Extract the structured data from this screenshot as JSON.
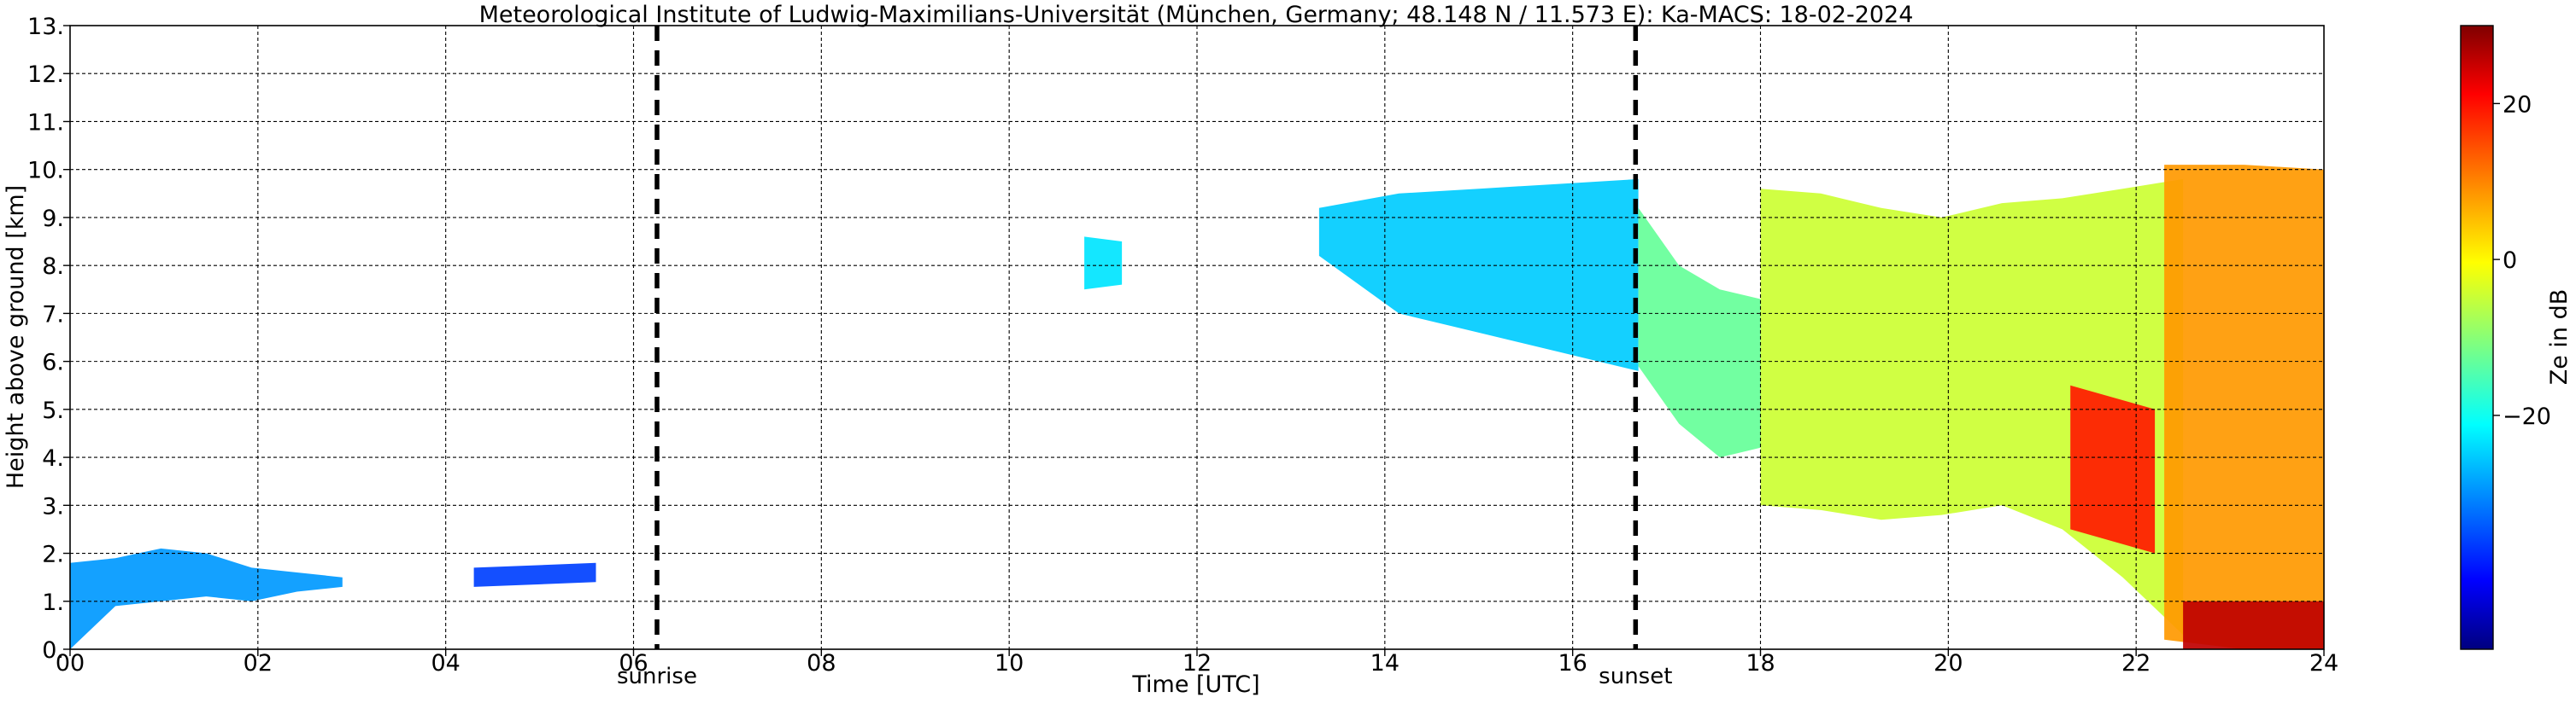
{
  "chart_data": {
    "type": "heatmap",
    "title": "Meteorological Institute of Ludwig-Maximilians-Universität (München, Germany; 48.148 N / 11.573 E):    Ka-MACS: 18-02-2024",
    "xlabel": "Time [UTC]",
    "ylabel": "Height above ground [km]",
    "xlim": [
      0,
      24
    ],
    "ylim": [
      0,
      13
    ],
    "x_ticks": [
      0,
      2,
      4,
      6,
      8,
      10,
      12,
      14,
      16,
      18,
      20,
      22,
      24
    ],
    "x_tick_labels": [
      "00",
      "02",
      "04",
      "06",
      "08",
      "10",
      "12",
      "14",
      "16",
      "18",
      "20",
      "22",
      "24"
    ],
    "y_ticks": [
      0,
      1,
      2,
      3,
      4,
      5,
      6,
      7,
      8,
      9,
      10,
      11,
      12,
      13
    ],
    "y_tick_labels": [
      "0.",
      "1.",
      "2.",
      "3.",
      "4.",
      "5.",
      "6.",
      "7.",
      "8.",
      "9.",
      "10.",
      "11.",
      "12.",
      "13."
    ],
    "grid": true,
    "markers": [
      {
        "label": "sunrise",
        "x": 6.25
      },
      {
        "label": "sunset",
        "x": 16.67
      }
    ],
    "colorbar": {
      "label": "Ze in dB",
      "range": [
        -50,
        30
      ],
      "ticks": [
        -20,
        0,
        20
      ],
      "tick_labels": [
        "−20",
        "0",
        "20"
      ],
      "colormap": "jet"
    },
    "regions": [
      {
        "x": [
          0.0,
          2.9
        ],
        "bottom": [
          0.0,
          0.9,
          1.0,
          1.1,
          1.0,
          1.2,
          1.3
        ],
        "top": [
          1.8,
          1.9,
          2.1,
          2.0,
          1.7,
          1.6,
          1.5
        ],
        "ze": -28
      },
      {
        "x": [
          4.3,
          5.6
        ],
        "bottom": [
          1.3,
          1.4
        ],
        "top": [
          1.7,
          1.8
        ],
        "ze": -35
      },
      {
        "x": [
          10.8,
          11.2
        ],
        "bottom": [
          7.5,
          7.6
        ],
        "top": [
          8.6,
          8.5
        ],
        "ze": -22
      },
      {
        "x": [
          13.3,
          16.7
        ],
        "bottom": [
          8.2,
          7.0,
          6.6,
          6.2,
          5.8
        ],
        "top": [
          9.2,
          9.5,
          9.6,
          9.7,
          9.8
        ],
        "ze": -24
      },
      {
        "x": [
          16.7,
          18.0
        ],
        "bottom": [
          5.9,
          4.7,
          4.0,
          4.2
        ],
        "top": [
          9.2,
          8.0,
          7.5,
          7.3
        ],
        "ze": -12
      },
      {
        "x": [
          18.0,
          22.5
        ],
        "bottom": [
          3.0,
          2.9,
          2.7,
          2.8,
          3.0,
          2.5,
          1.5,
          0.3
        ],
        "top": [
          9.6,
          9.5,
          9.2,
          9.0,
          9.3,
          9.4,
          9.6,
          9.8
        ],
        "ze": -4
      },
      {
        "x": [
          22.3,
          24.0
        ],
        "bottom": [
          0.2,
          0.0,
          0.0
        ],
        "top": [
          10.1,
          10.1,
          10.0
        ],
        "ze": 8
      },
      {
        "x": [
          21.3,
          22.2
        ],
        "bottom": [
          2.5,
          2.0
        ],
        "top": [
          5.5,
          5.0
        ],
        "ze": 18
      },
      {
        "x": [
          22.5,
          24.0
        ],
        "bottom": [
          0.0,
          0.0
        ],
        "top": [
          1.0,
          1.0
        ],
        "ze": 25
      }
    ]
  }
}
